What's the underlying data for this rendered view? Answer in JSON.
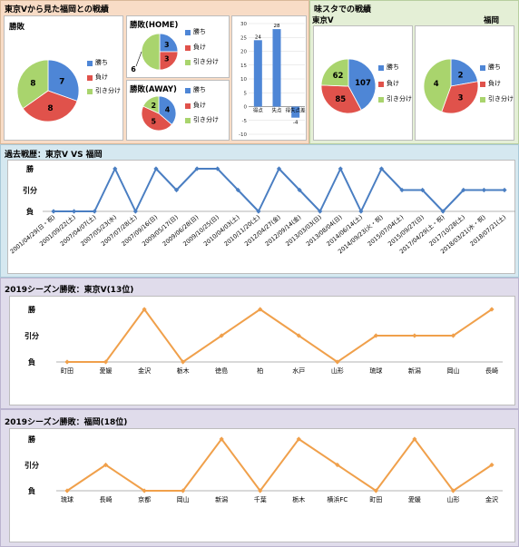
{
  "colors": {
    "win": "#4e86d6",
    "lose": "#e0524b",
    "draw": "#a9d46d",
    "blue_line": "#4a7ec2",
    "orange_line": "#f0a04b"
  },
  "sections": {
    "top_left_title": "東京Vから見た福岡との戦績",
    "top_right_title": "味スタでの戦績",
    "history_title": "過去戦歴：東京V VS 福岡",
    "tokyo2019_title": "2019シーズン勝敗：東京V(13位)",
    "fukuoka2019_title": "2019シーズン勝敗：福岡(18位)"
  },
  "legend": {
    "win": "勝ち",
    "lose": "負け",
    "draw": "引き分け"
  },
  "chart_data": [
    {
      "type": "pie",
      "title": "勝敗",
      "labels": [
        "勝ち",
        "負け",
        "引き分け"
      ],
      "values": [
        7,
        8,
        8
      ]
    },
    {
      "type": "pie",
      "title": "勝敗(HOME)",
      "labels": [
        "勝ち",
        "負け",
        "引き分け"
      ],
      "values": [
        3,
        3,
        6
      ]
    },
    {
      "type": "pie",
      "title": "勝敗(AWAY)",
      "labels": [
        "勝ち",
        "負け",
        "引き分け"
      ],
      "values": [
        4,
        5,
        2
      ]
    },
    {
      "type": "bar",
      "categories": [
        "得点",
        "失点",
        "得失点差"
      ],
      "values": [
        24,
        28,
        -4
      ],
      "ylim": [
        -10,
        30
      ],
      "yticks": [
        -10,
        -5,
        0,
        5,
        10,
        15,
        20,
        25,
        30
      ],
      "grid": true
    },
    {
      "type": "pie",
      "title": "東京V",
      "labels": [
        "勝ち",
        "負け",
        "引き分け"
      ],
      "values": [
        107,
        85,
        62
      ]
    },
    {
      "type": "pie",
      "title": "福岡",
      "labels": [
        "勝ち",
        "負け",
        "引き分け"
      ],
      "values": [
        2,
        3,
        4
      ]
    },
    {
      "type": "line",
      "title": "過去戦歴：東京V VS 福岡",
      "levels": [
        "負",
        "引分",
        "勝"
      ],
      "categories": [
        "2001/04/29(日・祝)",
        "2001/09/22(土)",
        "2007/04/07(土)",
        "2007/05/23(水)",
        "2007/07/28(土)",
        "2007/09/16(日)",
        "2009/05/17(日)",
        "2009/06/28(日)",
        "2009/10/25(日)",
        "2010/04/03(土)",
        "2010/11/20(土)",
        "2012/04/27(金)",
        "2012/09/14(金)",
        "2013/03/03(日)",
        "2013/08/04(日)",
        "2014/06/14(土)",
        "2014/09/23(火・祝)",
        "2015/07/04(土)",
        "2015/09/27(日)",
        "2017/04/29(土・祝)",
        "2017/10/28(土)",
        "2018/03/21(水・祝)",
        "2018/07/21(土)"
      ],
      "values": [
        0,
        0,
        0,
        2,
        0,
        2,
        1,
        2,
        2,
        1,
        0,
        2,
        1,
        0,
        2,
        0,
        2,
        1,
        1,
        0,
        1,
        1,
        1
      ]
    },
    {
      "type": "line",
      "title": "2019シーズン勝敗：東京V(13位)",
      "levels": [
        "負",
        "引分",
        "勝"
      ],
      "categories": [
        "町田",
        "愛媛",
        "金沢",
        "栃木",
        "徳島",
        "柏",
        "水戸",
        "山形",
        "琉球",
        "新潟",
        "岡山",
        "長崎"
      ],
      "values": [
        0,
        0,
        2,
        0,
        1,
        2,
        1,
        0,
        1,
        1,
        1,
        2
      ]
    },
    {
      "type": "line",
      "title": "2019シーズン勝敗：福岡(18位)",
      "levels": [
        "負",
        "引分",
        "勝"
      ],
      "categories": [
        "琉球",
        "長崎",
        "京都",
        "岡山",
        "新潟",
        "千葉",
        "栃木",
        "横浜FC",
        "町田",
        "愛媛",
        "山形",
        "金沢"
      ],
      "values": [
        0,
        1,
        0,
        0,
        2,
        0,
        2,
        1,
        0,
        2,
        0,
        1
      ]
    }
  ]
}
